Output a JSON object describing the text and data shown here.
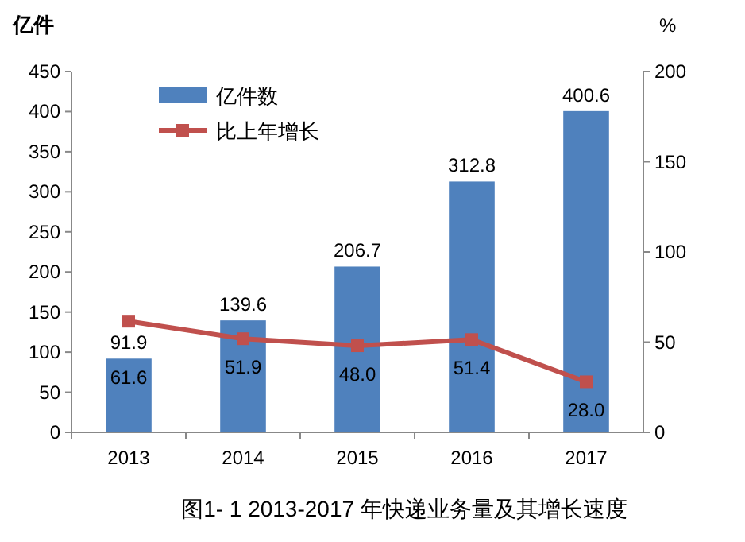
{
  "chart_data": {
    "type": "bar",
    "categories": [
      "2013",
      "2014",
      "2015",
      "2016",
      "2017"
    ],
    "series": [
      {
        "name": "亿件数",
        "type": "bar",
        "color": "#4f81bd",
        "values": [
          91.9,
          139.6,
          206.7,
          312.8,
          400.6
        ]
      },
      {
        "name": "比上年增长",
        "type": "line",
        "axis": "y2",
        "color": "#c0504d",
        "marker": "square",
        "values": [
          61.6,
          51.9,
          48.0,
          51.4,
          28.0
        ],
        "value_labels": [
          "61.6",
          "51.9",
          "48.0",
          "51.4",
          "28.0"
        ]
      }
    ],
    "ylabel": "亿件",
    "y2label": "%",
    "ylim": [
      0,
      450
    ],
    "yticks": [
      0,
      50,
      100,
      150,
      200,
      250,
      300,
      350,
      400,
      450
    ],
    "y2lim": [
      0,
      200
    ],
    "y2ticks": [
      0,
      50,
      100,
      150,
      200
    ],
    "data_labels": true,
    "legend": "top left",
    "annotations": [
      "图1- 1 2013-2017 年快递业务量及其增长速度"
    ]
  }
}
